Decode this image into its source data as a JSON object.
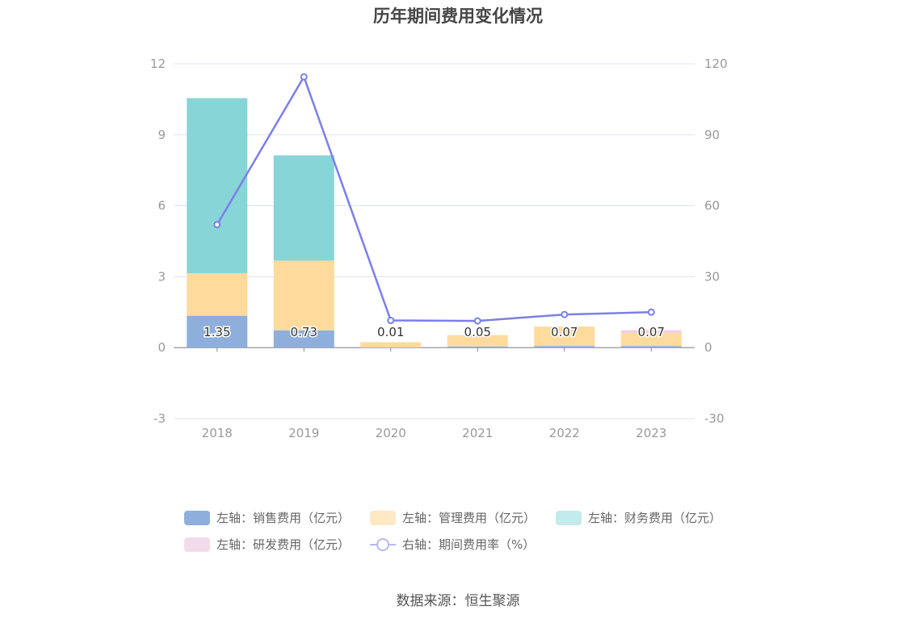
{
  "chart_data": {
    "type": "bar",
    "title": "历年期间费用变化情况",
    "categories": [
      "2018",
      "2019",
      "2020",
      "2021",
      "2022",
      "2023"
    ],
    "stacked": true,
    "left_axis": {
      "ylim": [
        -3,
        12
      ],
      "ticks": [
        "12",
        "9",
        "6",
        "3",
        "0",
        "-3"
      ]
    },
    "right_axis": {
      "ylim": [
        -30,
        120
      ],
      "ticks": [
        "120",
        "90",
        "60",
        "30",
        "0",
        "-30"
      ]
    },
    "grid": true,
    "legend_position": "bottom",
    "series": [
      {
        "name": "左轴：销售费用（亿元）",
        "axis": "left",
        "type": "bar",
        "color": "#8eaedc",
        "values": [
          1.35,
          0.73,
          0.01,
          0.05,
          0.07,
          0.07
        ],
        "labels": [
          "1.35",
          "0.73",
          "0.01",
          "0.05",
          "0.07",
          "0.07"
        ]
      },
      {
        "name": "左轴：管理费用（亿元）",
        "axis": "left",
        "type": "bar",
        "color": "#fedb9c",
        "values": [
          1.8,
          2.95,
          0.22,
          0.48,
          0.82,
          0.55
        ]
      },
      {
        "name": "左轴：财务费用（亿元）",
        "axis": "left",
        "type": "bar",
        "color": "#88d5d8",
        "values": [
          7.4,
          4.45,
          0.0,
          0.0,
          0.0,
          0.0
        ]
      },
      {
        "name": "左轴：研发费用（亿元）",
        "axis": "left",
        "type": "bar",
        "color": "#f0cfe6",
        "values": [
          0.0,
          0.0,
          0.0,
          0.0,
          0.0,
          0.12
        ]
      },
      {
        "name": "右轴：期间费用率（%）",
        "axis": "right",
        "type": "line",
        "color": "#7b7fe8",
        "values": [
          52,
          114.5,
          11.5,
          11.3,
          14,
          15
        ]
      }
    ]
  },
  "legend": [
    {
      "label": "左轴：销售费用（亿元）",
      "color": "#8eaedc",
      "kind": "bar"
    },
    {
      "label": "左轴：管理费用（亿元）",
      "color": "#ffe8c4",
      "kind": "bar"
    },
    {
      "label": "左轴：财务费用（亿元）",
      "color": "#c3ebec",
      "kind": "bar"
    },
    {
      "label": "左轴：研发费用（亿元）",
      "color": "#f2dcec",
      "kind": "bar"
    },
    {
      "label": "右轴：期间费用率（%）",
      "color": "#b7b9f3",
      "kind": "line"
    }
  ],
  "source": "数据来源：恒生聚源"
}
